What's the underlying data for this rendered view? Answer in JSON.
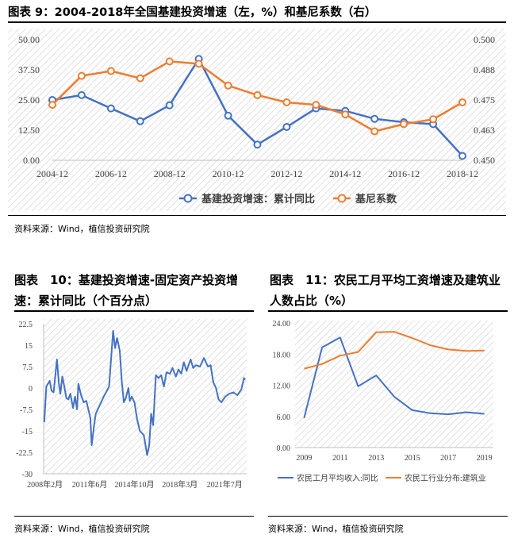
{
  "fig9": {
    "title": "图表 9：2004-2018年全国基建投资增速（左，%）和基尼系数（右）",
    "source": "资料来源：Wind，植信投资研究院"
  },
  "fig10": {
    "title": "图表　10：基建投资增速-固定资产投资增速：累计同比（个百分点）",
    "source": "资料来源：Wind，植信投资研究院"
  },
  "fig11": {
    "title": "图表　11：农民工月平均工资增速及建筑业人数占比（%）",
    "source": "资料来源：Wind，植信投资研究院"
  },
  "chart_data": [
    {
      "id": "fig9",
      "type": "line",
      "x_ticks": [
        "2004-12",
        "2006-12",
        "2008-12",
        "2010-12",
        "2012-12",
        "2014-12",
        "2016-12",
        "2018-12"
      ],
      "x": [
        2004,
        2005,
        2006,
        2007,
        2008,
        2009,
        2010,
        2011,
        2012,
        2013,
        2014,
        2015,
        2016,
        2017,
        2018
      ],
      "y_left_ticks": [
        "0.00",
        "12.50",
        "25.00",
        "37.50",
        "50.00"
      ],
      "y_right_ticks": [
        "0.450",
        "0.463",
        "0.475",
        "0.488",
        "0.500"
      ],
      "ylim_left": [
        0,
        50
      ],
      "ylim_right": [
        0.45,
        0.5
      ],
      "series": [
        {
          "name": "基建投资增速：累计同比",
          "axis": "left",
          "color": "#4472C4",
          "values": [
            25.0,
            27.0,
            21.5,
            16.2,
            22.8,
            42.0,
            18.5,
            6.5,
            13.8,
            21.5,
            20.5,
            17.2,
            15.8,
            15.0,
            1.8
          ]
        },
        {
          "name": "基尼系数",
          "axis": "right",
          "color": "#ED7D31",
          "values": [
            0.473,
            0.485,
            0.487,
            0.484,
            0.491,
            0.49,
            0.481,
            0.477,
            0.474,
            0.473,
            0.469,
            0.462,
            0.465,
            0.467,
            0.474
          ]
        }
      ]
    },
    {
      "id": "fig10",
      "type": "line",
      "x_ticks": [
        "2008年2月",
        "2011年6月",
        "2014年10月",
        "2018年3月",
        "2021年7月"
      ],
      "y_ticks": [
        "22.5",
        "15",
        "7.5",
        "0",
        "-7.5",
        "-15",
        "-22.5",
        "-30"
      ],
      "ylim": [
        -30,
        22.5
      ],
      "x_range": [
        2008.0,
        2023.2
      ],
      "series": [
        {
          "name": "基建投资增速-固定资产投资增速：累计同比",
          "color": "#4472C4",
          "x": [
            2008.05,
            2008.2,
            2008.45,
            2008.6,
            2008.75,
            2009.0,
            2009.15,
            2009.25,
            2009.4,
            2009.55,
            2009.7,
            2009.85,
            2010.0,
            2010.2,
            2010.35,
            2010.5,
            2010.6,
            2010.8,
            2011.0,
            2011.2,
            2011.5,
            2011.6,
            2011.75,
            2011.9,
            2012.2,
            2012.5,
            2012.9,
            2013.2,
            2013.35,
            2013.5,
            2013.7,
            2013.85,
            2014.0,
            2014.15,
            2014.35,
            2014.45,
            2014.6,
            2014.8,
            2015.0,
            2015.2,
            2015.5,
            2015.75,
            2015.9,
            2016.05,
            2016.2,
            2016.4,
            2016.6,
            2016.8,
            2017.0,
            2017.2,
            2017.45,
            2017.65,
            2017.9,
            2018.1,
            2018.3,
            2018.5,
            2018.7,
            2019.0,
            2019.2,
            2019.4,
            2019.7,
            2020.0,
            2020.3,
            2020.5,
            2020.7,
            2020.9,
            2021.1,
            2021.3,
            2021.6,
            2021.9,
            2022.2,
            2022.5,
            2022.8,
            2023.0,
            2023.1
          ],
          "values": [
            -12.0,
            0.5,
            2.5,
            -1.0,
            -1.5,
            10.0,
            1.0,
            -2.0,
            4.0,
            0.5,
            -3.5,
            -4.0,
            -2.0,
            -7.0,
            -3.0,
            -7.5,
            1.5,
            -2.5,
            -5.0,
            -4.5,
            -10.5,
            -20.0,
            -14.0,
            -9.0,
            -6.0,
            -3.0,
            0.5,
            20.0,
            14.0,
            17.5,
            13.0,
            2.5,
            -5.0,
            -3.5,
            0.0,
            -4.5,
            -3.0,
            -5.0,
            -11.0,
            -15.0,
            -16.5,
            -23.5,
            -20.0,
            -9.0,
            -13.0,
            4.5,
            3.5,
            4.5,
            0.5,
            5.5,
            5.0,
            7.0,
            4.0,
            6.5,
            5.0,
            9.0,
            6.0,
            10.0,
            7.0,
            8.0,
            7.5,
            10.5,
            7.5,
            8.0,
            2.0,
            0.0,
            -4.0,
            -5.0,
            -3.0,
            -2.0,
            -1.5,
            -2.5,
            -0.5,
            3.5,
            3.0
          ]
        }
      ]
    },
    {
      "id": "fig11",
      "type": "line",
      "x_ticks": [
        "2009",
        "2011",
        "2013",
        "2015",
        "2017",
        "2019"
      ],
      "x": [
        2009,
        2010,
        2011,
        2012,
        2013,
        2014,
        2015,
        2016,
        2017,
        2018,
        2019
      ],
      "y_ticks": [
        "0.00",
        "6.00",
        "12.00",
        "18.00",
        "24.00"
      ],
      "ylim": [
        0,
        24
      ],
      "series": [
        {
          "name": "农民工月平均收入:同比",
          "color": "#4472C4",
          "values": [
            5.7,
            19.3,
            21.2,
            11.8,
            13.9,
            9.8,
            7.2,
            6.6,
            6.4,
            6.8,
            6.5
          ]
        },
        {
          "name": "农民工行业分布:建筑业",
          "color": "#ED7D31",
          "values": [
            15.2,
            16.1,
            17.7,
            18.4,
            22.2,
            22.3,
            21.1,
            19.7,
            18.9,
            18.6,
            18.7
          ]
        }
      ]
    }
  ]
}
